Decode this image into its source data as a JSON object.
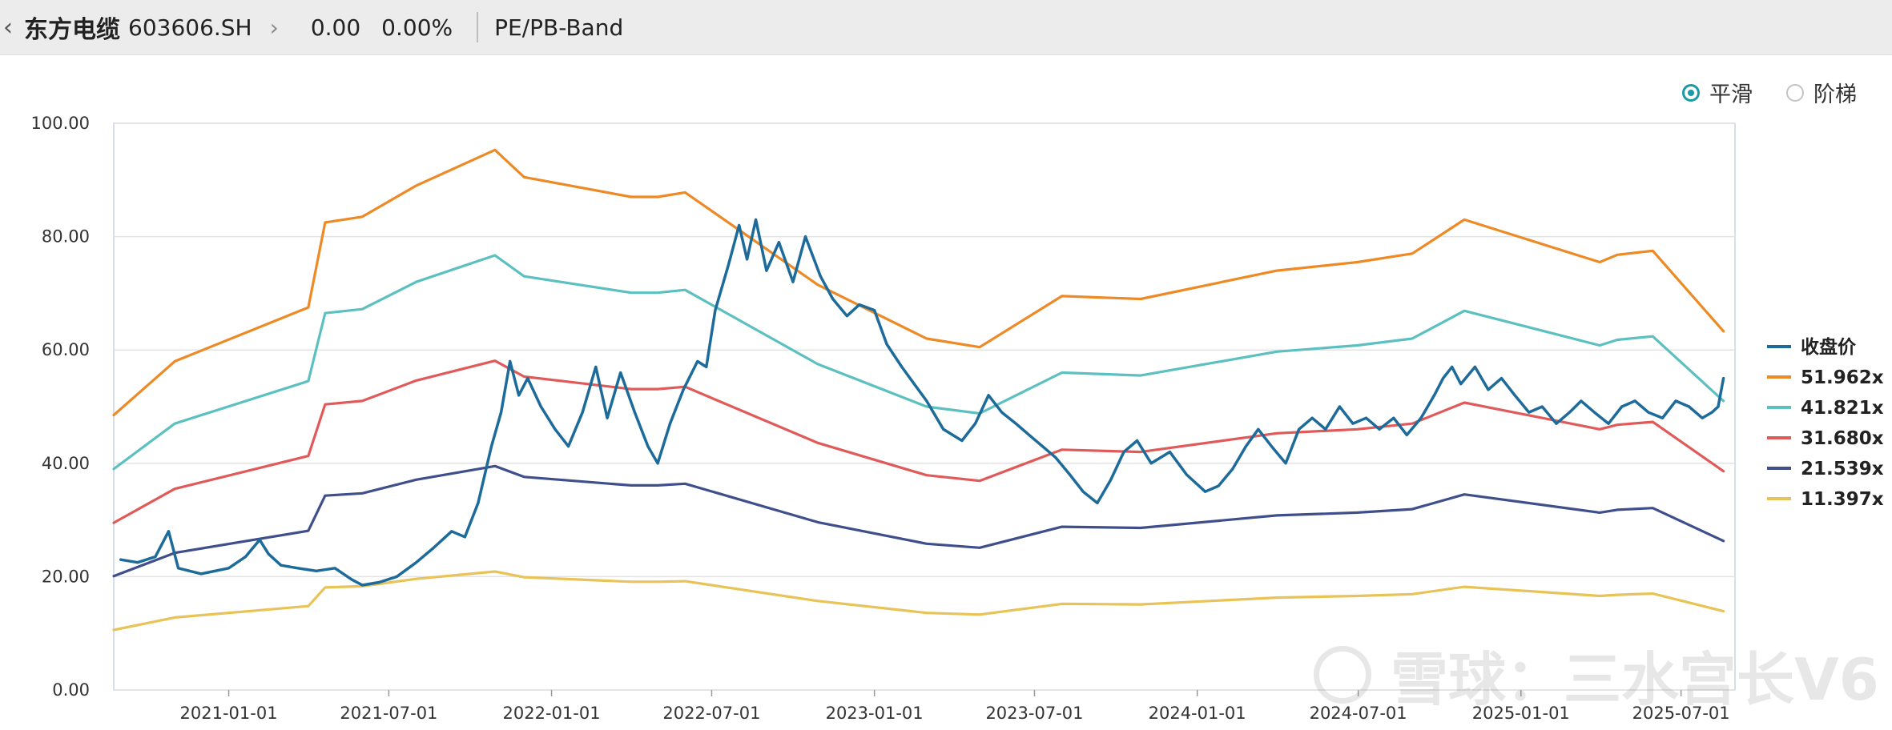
{
  "header": {
    "back_icon": "chevron-left-icon",
    "stock_name": "东方电缆",
    "stock_code": "603606.SH",
    "chevron_icon": "chevron-right-icon",
    "price": "0.00",
    "change_pct": "0.00%",
    "tool_label": "PE/PB-Band"
  },
  "mode_toggle": {
    "options": [
      {
        "label": "平滑",
        "selected": true
      },
      {
        "label": "阶梯",
        "selected": false
      }
    ]
  },
  "watermark": {
    "text": "雪球：三水宫长V6"
  },
  "colors": {
    "close": "#1d6b9a",
    "band_51": "#ee8a25",
    "band_41": "#5cc0c0",
    "band_31": "#e05a5a",
    "band_21": "#3f4f8c",
    "band_11": "#e8c358",
    "accent": "#1a9aa6"
  },
  "chart_data": {
    "type": "line",
    "title": "",
    "xlabel": "",
    "ylabel": "",
    "ylim": [
      0,
      100
    ],
    "xlim": [
      "2020-08-24",
      "2025-08-31"
    ],
    "yticks": [
      "0.00",
      "20.00",
      "40.00",
      "60.00",
      "80.00",
      "100.00"
    ],
    "xticks": [
      "2021-01-01",
      "2021-07-01",
      "2022-01-01",
      "2022-07-01",
      "2023-01-01",
      "2023-07-01",
      "2024-01-01",
      "2024-07-01",
      "2025-01-01",
      "2025-07-01"
    ],
    "grid": true,
    "legend_position": "right",
    "series": [
      {
        "name": "收盘价",
        "color": "#1d6b9a",
        "points": [
          [
            "2020-09-01",
            23.0
          ],
          [
            "2020-09-20",
            22.5
          ],
          [
            "2020-10-10",
            23.5
          ],
          [
            "2020-10-25",
            28.0
          ],
          [
            "2020-11-05",
            21.5
          ],
          [
            "2020-12-01",
            20.5
          ],
          [
            "2021-01-01",
            21.5
          ],
          [
            "2021-01-20",
            23.5
          ],
          [
            "2021-02-05",
            26.5
          ],
          [
            "2021-02-15",
            24.0
          ],
          [
            "2021-03-01",
            22.0
          ],
          [
            "2021-03-20",
            21.5
          ],
          [
            "2021-04-10",
            21.0
          ],
          [
            "2021-05-01",
            21.5
          ],
          [
            "2021-05-20",
            19.5
          ],
          [
            "2021-06-01",
            18.5
          ],
          [
            "2021-06-20",
            19.0
          ],
          [
            "2021-07-10",
            20.0
          ],
          [
            "2021-08-01",
            22.5
          ],
          [
            "2021-08-20",
            25.0
          ],
          [
            "2021-09-10",
            28.0
          ],
          [
            "2021-09-25",
            27.0
          ],
          [
            "2021-10-10",
            33.0
          ],
          [
            "2021-10-25",
            43.0
          ],
          [
            "2021-11-05",
            49.0
          ],
          [
            "2021-11-15",
            58.0
          ],
          [
            "2021-11-25",
            52.0
          ],
          [
            "2021-12-05",
            55.0
          ],
          [
            "2021-12-20",
            50.0
          ],
          [
            "2022-01-05",
            46.0
          ],
          [
            "2022-01-20",
            43.0
          ],
          [
            "2022-02-05",
            49.0
          ],
          [
            "2022-02-20",
            57.0
          ],
          [
            "2022-03-05",
            48.0
          ],
          [
            "2022-03-20",
            56.0
          ],
          [
            "2022-04-05",
            49.0
          ],
          [
            "2022-04-20",
            43.0
          ],
          [
            "2022-05-01",
            40.0
          ],
          [
            "2022-05-15",
            47.0
          ],
          [
            "2022-05-30",
            53.0
          ],
          [
            "2022-06-15",
            58.0
          ],
          [
            "2022-06-25",
            57.0
          ],
          [
            "2022-07-05",
            67.0
          ],
          [
            "2022-07-20",
            75.0
          ],
          [
            "2022-08-01",
            82.0
          ],
          [
            "2022-08-10",
            76.0
          ],
          [
            "2022-08-20",
            83.0
          ],
          [
            "2022-09-01",
            74.0
          ],
          [
            "2022-09-15",
            79.0
          ],
          [
            "2022-10-01",
            72.0
          ],
          [
            "2022-10-15",
            80.0
          ],
          [
            "2022-11-01",
            73.0
          ],
          [
            "2022-11-15",
            69.0
          ],
          [
            "2022-12-01",
            66.0
          ],
          [
            "2022-12-15",
            68.0
          ],
          [
            "2023-01-01",
            67.0
          ],
          [
            "2023-01-15",
            61.0
          ],
          [
            "2023-02-01",
            57.0
          ],
          [
            "2023-02-15",
            54.0
          ],
          [
            "2023-03-01",
            51.0
          ],
          [
            "2023-03-20",
            46.0
          ],
          [
            "2023-04-10",
            44.0
          ],
          [
            "2023-04-25",
            47.0
          ],
          [
            "2023-05-10",
            52.0
          ],
          [
            "2023-05-25",
            49.0
          ],
          [
            "2023-06-10",
            47.0
          ],
          [
            "2023-06-25",
            45.0
          ],
          [
            "2023-07-10",
            43.0
          ],
          [
            "2023-07-25",
            41.0
          ],
          [
            "2023-08-10",
            38.0
          ],
          [
            "2023-08-25",
            35.0
          ],
          [
            "2023-09-10",
            33.0
          ],
          [
            "2023-09-25",
            37.0
          ],
          [
            "2023-10-10",
            42.0
          ],
          [
            "2023-10-25",
            44.0
          ],
          [
            "2023-11-10",
            40.0
          ],
          [
            "2023-12-01",
            42.0
          ],
          [
            "2023-12-20",
            38.0
          ],
          [
            "2024-01-10",
            35.0
          ],
          [
            "2024-01-25",
            36.0
          ],
          [
            "2024-02-10",
            39.0
          ],
          [
            "2024-02-25",
            43.0
          ],
          [
            "2024-03-10",
            46.0
          ],
          [
            "2024-03-25",
            43.0
          ],
          [
            "2024-04-10",
            40.0
          ],
          [
            "2024-04-25",
            46.0
          ],
          [
            "2024-05-10",
            48.0
          ],
          [
            "2024-05-25",
            46.0
          ],
          [
            "2024-06-10",
            50.0
          ],
          [
            "2024-06-25",
            47.0
          ],
          [
            "2024-07-10",
            48.0
          ],
          [
            "2024-07-25",
            46.0
          ],
          [
            "2024-08-10",
            48.0
          ],
          [
            "2024-08-25",
            45.0
          ],
          [
            "2024-09-10",
            48.0
          ],
          [
            "2024-09-25",
            52.0
          ],
          [
            "2024-10-05",
            55.0
          ],
          [
            "2024-10-15",
            57.0
          ],
          [
            "2024-10-25",
            54.0
          ],
          [
            "2024-11-10",
            57.0
          ],
          [
            "2024-11-25",
            53.0
          ],
          [
            "2024-12-10",
            55.0
          ],
          [
            "2024-12-25",
            52.0
          ],
          [
            "2025-01-10",
            49.0
          ],
          [
            "2025-01-25",
            50.0
          ],
          [
            "2025-02-10",
            47.0
          ],
          [
            "2025-02-25",
            49.0
          ],
          [
            "2025-03-10",
            51.0
          ],
          [
            "2025-03-25",
            49.0
          ],
          [
            "2025-04-10",
            47.0
          ],
          [
            "2025-04-25",
            50.0
          ],
          [
            "2025-05-10",
            51.0
          ],
          [
            "2025-05-25",
            49.0
          ],
          [
            "2025-06-10",
            48.0
          ],
          [
            "2025-06-25",
            51.0
          ],
          [
            "2025-07-10",
            50.0
          ],
          [
            "2025-07-25",
            48.0
          ],
          [
            "2025-08-05",
            49.0
          ],
          [
            "2025-08-12",
            50.0
          ],
          [
            "2025-08-18",
            55.0
          ]
        ]
      },
      {
        "name": "51.962x",
        "color": "#ee8a25",
        "points": [
          [
            "2020-08-24",
            48.5
          ],
          [
            "2020-11-01",
            58.0
          ],
          [
            "2021-04-01",
            67.5
          ],
          [
            "2021-04-20",
            82.5
          ],
          [
            "2021-06-01",
            83.5
          ],
          [
            "2021-08-01",
            89.0
          ],
          [
            "2021-10-29",
            95.3
          ],
          [
            "2021-12-01",
            90.5
          ],
          [
            "2022-04-01",
            87.0
          ],
          [
            "2022-05-01",
            87.0
          ],
          [
            "2022-06-01",
            87.8
          ],
          [
            "2022-10-29",
            71.5
          ],
          [
            "2023-03-01",
            62.0
          ],
          [
            "2023-04-30",
            60.5
          ],
          [
            "2023-08-01",
            69.5
          ],
          [
            "2023-10-29",
            69.0
          ],
          [
            "2024-03-31",
            74.0
          ],
          [
            "2024-06-30",
            75.5
          ],
          [
            "2024-08-31",
            77.0
          ],
          [
            "2024-10-29",
            83.0
          ],
          [
            "2025-03-31",
            75.5
          ],
          [
            "2025-04-20",
            76.8
          ],
          [
            "2025-05-30",
            77.5
          ],
          [
            "2025-08-18",
            63.3
          ]
        ]
      },
      {
        "name": "41.821x",
        "color": "#5cc0c0",
        "points": [
          [
            "2020-08-24",
            39.0
          ],
          [
            "2020-11-01",
            47.0
          ],
          [
            "2021-04-01",
            54.5
          ],
          [
            "2021-04-20",
            66.5
          ],
          [
            "2021-06-01",
            67.2
          ],
          [
            "2021-08-01",
            72.0
          ],
          [
            "2021-10-29",
            76.7
          ],
          [
            "2021-12-01",
            73.0
          ],
          [
            "2022-04-01",
            70.1
          ],
          [
            "2022-05-01",
            70.1
          ],
          [
            "2022-06-01",
            70.6
          ],
          [
            "2022-10-29",
            57.5
          ],
          [
            "2023-03-01",
            50.0
          ],
          [
            "2023-04-30",
            48.8
          ],
          [
            "2023-08-01",
            56.0
          ],
          [
            "2023-10-29",
            55.5
          ],
          [
            "2024-03-31",
            59.7
          ],
          [
            "2024-06-30",
            60.8
          ],
          [
            "2024-08-31",
            62.0
          ],
          [
            "2024-10-29",
            66.9
          ],
          [
            "2025-03-31",
            60.8
          ],
          [
            "2025-04-20",
            61.8
          ],
          [
            "2025-05-30",
            62.4
          ],
          [
            "2025-08-18",
            51.0
          ]
        ]
      },
      {
        "name": "31.680x",
        "color": "#e05a5a",
        "points": [
          [
            "2020-08-24",
            29.5
          ],
          [
            "2020-11-01",
            35.5
          ],
          [
            "2021-04-01",
            41.3
          ],
          [
            "2021-04-20",
            50.4
          ],
          [
            "2021-06-01",
            51.0
          ],
          [
            "2021-08-01",
            54.6
          ],
          [
            "2021-10-29",
            58.1
          ],
          [
            "2021-12-01",
            55.3
          ],
          [
            "2022-04-01",
            53.1
          ],
          [
            "2022-05-01",
            53.1
          ],
          [
            "2022-06-01",
            53.5
          ],
          [
            "2022-10-29",
            43.6
          ],
          [
            "2023-03-01",
            37.9
          ],
          [
            "2023-04-30",
            36.9
          ],
          [
            "2023-08-01",
            42.4
          ],
          [
            "2023-10-29",
            42.0
          ],
          [
            "2024-03-31",
            45.3
          ],
          [
            "2024-06-30",
            46.0
          ],
          [
            "2024-08-31",
            47.0
          ],
          [
            "2024-10-29",
            50.7
          ],
          [
            "2025-03-31",
            46.0
          ],
          [
            "2025-04-20",
            46.8
          ],
          [
            "2025-05-30",
            47.3
          ],
          [
            "2025-08-18",
            38.6
          ]
        ]
      },
      {
        "name": "21.539x",
        "color": "#3f4f8c",
        "points": [
          [
            "2020-08-24",
            20.1
          ],
          [
            "2020-11-01",
            24.2
          ],
          [
            "2021-04-01",
            28.1
          ],
          [
            "2021-04-20",
            34.3
          ],
          [
            "2021-06-01",
            34.7
          ],
          [
            "2021-08-01",
            37.1
          ],
          [
            "2021-10-29",
            39.5
          ],
          [
            "2021-12-01",
            37.6
          ],
          [
            "2022-04-01",
            36.1
          ],
          [
            "2022-05-01",
            36.1
          ],
          [
            "2022-06-01",
            36.4
          ],
          [
            "2022-10-29",
            29.6
          ],
          [
            "2023-03-01",
            25.8
          ],
          [
            "2023-04-30",
            25.1
          ],
          [
            "2023-08-01",
            28.8
          ],
          [
            "2023-10-29",
            28.6
          ],
          [
            "2024-03-31",
            30.8
          ],
          [
            "2024-06-30",
            31.3
          ],
          [
            "2024-08-31",
            31.9
          ],
          [
            "2024-10-29",
            34.5
          ],
          [
            "2025-03-31",
            31.3
          ],
          [
            "2025-04-20",
            31.8
          ],
          [
            "2025-05-30",
            32.1
          ],
          [
            "2025-08-18",
            26.3
          ]
        ]
      },
      {
        "name": "11.397x",
        "color": "#e8c358",
        "points": [
          [
            "2020-08-24",
            10.6
          ],
          [
            "2020-11-01",
            12.8
          ],
          [
            "2021-04-01",
            14.8
          ],
          [
            "2021-04-20",
            18.1
          ],
          [
            "2021-06-01",
            18.3
          ],
          [
            "2021-08-01",
            19.6
          ],
          [
            "2021-10-29",
            20.9
          ],
          [
            "2021-12-01",
            19.9
          ],
          [
            "2022-04-01",
            19.1
          ],
          [
            "2022-05-01",
            19.1
          ],
          [
            "2022-06-01",
            19.2
          ],
          [
            "2022-10-29",
            15.7
          ],
          [
            "2023-03-01",
            13.6
          ],
          [
            "2023-04-30",
            13.3
          ],
          [
            "2023-08-01",
            15.2
          ],
          [
            "2023-10-29",
            15.1
          ],
          [
            "2024-03-31",
            16.3
          ],
          [
            "2024-06-30",
            16.6
          ],
          [
            "2024-08-31",
            16.9
          ],
          [
            "2024-10-29",
            18.2
          ],
          [
            "2025-03-31",
            16.6
          ],
          [
            "2025-04-20",
            16.8
          ],
          [
            "2025-05-30",
            17.0
          ],
          [
            "2025-08-18",
            13.9
          ]
        ]
      }
    ]
  }
}
